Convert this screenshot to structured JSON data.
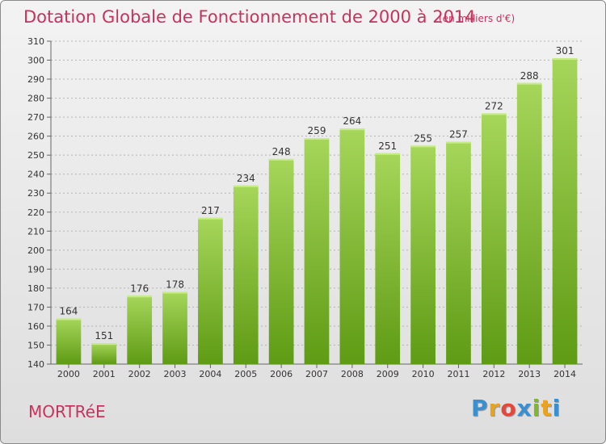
{
  "title": "Dotation Globale de Fonctionnement de 2000 à 2014",
  "subtitle": "(en milliers d'€)",
  "commune": "MORTRéE",
  "logo": {
    "letters": [
      "P",
      "r",
      "o",
      "x",
      "i",
      "t",
      "i"
    ],
    "colors": [
      "#3a8fd1",
      "#e9a31e",
      "#e2483b",
      "#3a8fd1",
      "#7fb82a",
      "#e9a31e",
      "#3a8fd1"
    ]
  },
  "colors": {
    "bar_top": "#a6d65a",
    "bar_bottom": "#5f9b14",
    "accent": "#c8325e",
    "grid": "#b5b5b5"
  },
  "chart_data": {
    "type": "bar",
    "categories": [
      "2000",
      "2001",
      "2002",
      "2003",
      "2004",
      "2005",
      "2006",
      "2007",
      "2008",
      "2009",
      "2010",
      "2011",
      "2012",
      "2013",
      "2014"
    ],
    "values": [
      164,
      151,
      176,
      178,
      217,
      234,
      248,
      259,
      264,
      251,
      255,
      257,
      272,
      288,
      301
    ],
    "yticks": [
      140,
      150,
      160,
      170,
      180,
      190,
      200,
      210,
      220,
      230,
      240,
      250,
      260,
      270,
      280,
      290,
      300,
      310
    ],
    "ylim": [
      140,
      310
    ],
    "grid": true,
    "title": "Dotation Globale de Fonctionnement de 2000 à 2014",
    "subtitle": "(en milliers d'€)"
  }
}
